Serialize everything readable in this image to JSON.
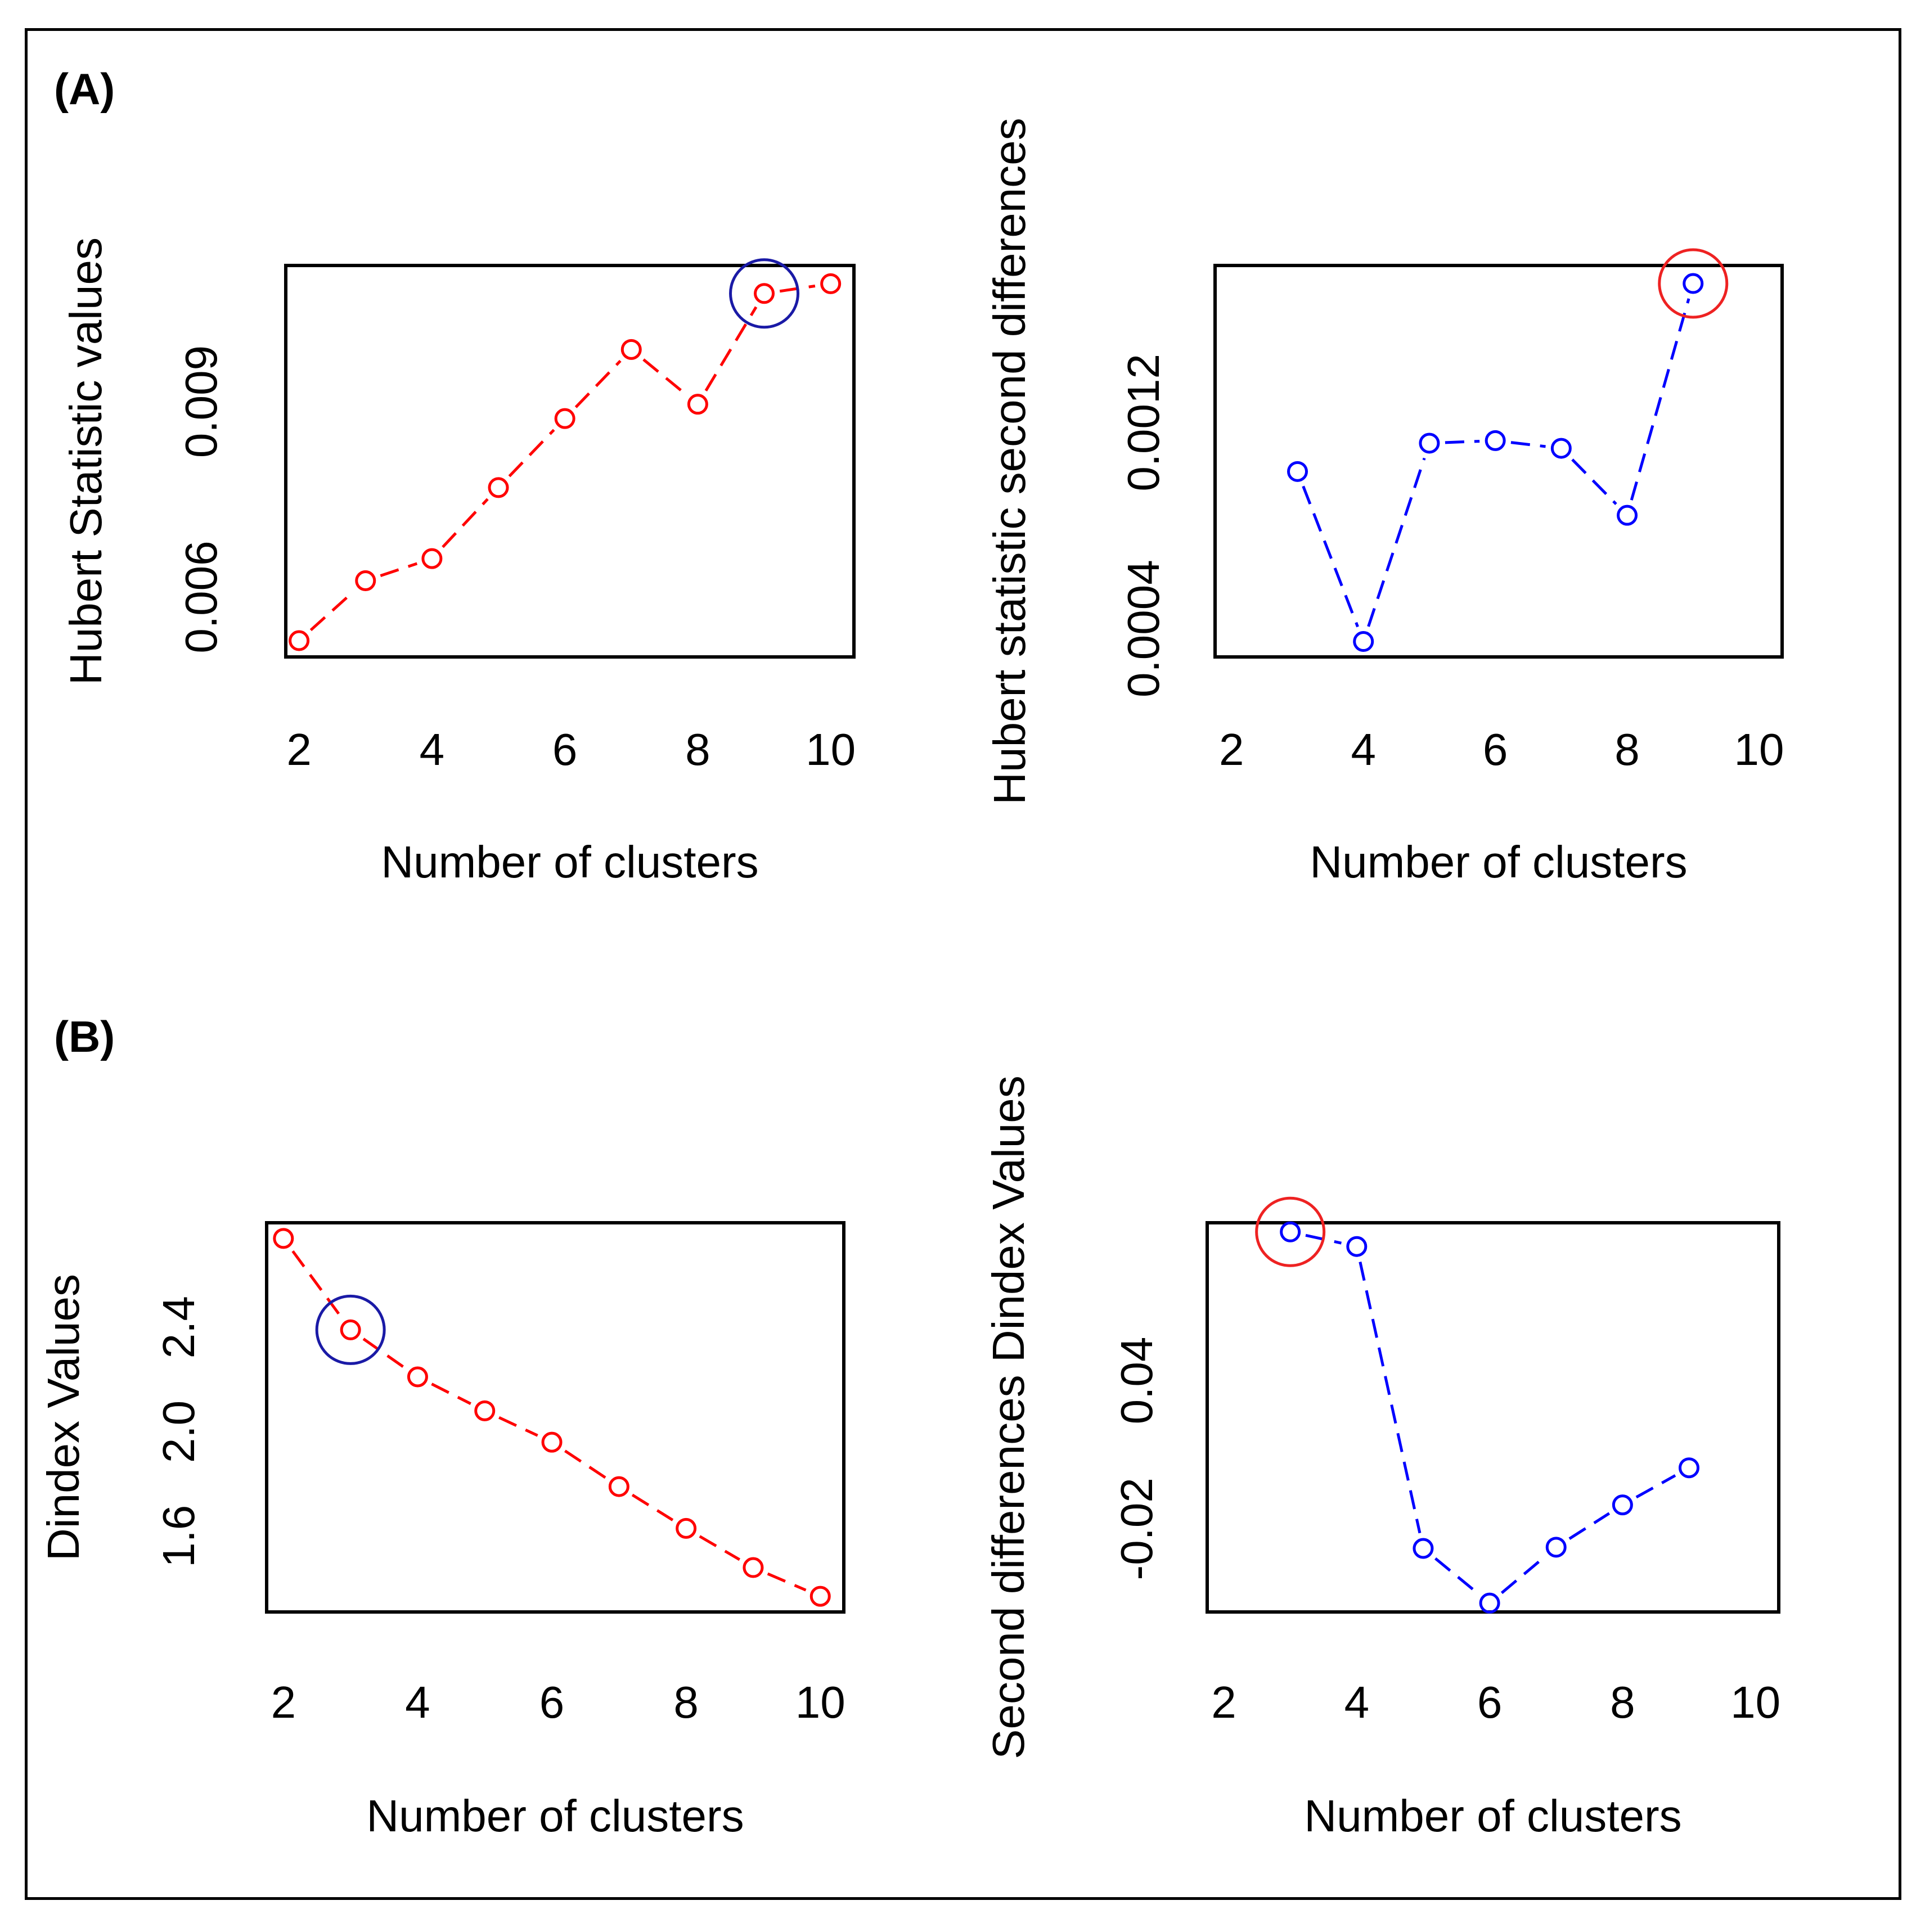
{
  "panel_labels": {
    "a": "(A)",
    "b": "(B)"
  },
  "colors": {
    "red": "#ff0000",
    "blue": "#0000ff",
    "highlight_blue": "#1a1aa6",
    "highlight_red": "#ee2222"
  },
  "chart_data": [
    {
      "id": "a1",
      "type": "line",
      "xlabel": "Number of clusters",
      "ylabel": "Hubert Statistic values",
      "x": [
        2,
        3,
        4,
        5,
        6,
        7,
        8,
        9,
        10
      ],
      "y": [
        0.00533,
        0.00625,
        0.00659,
        0.00768,
        0.00874,
        0.0098,
        0.00896,
        0.01066,
        0.01081
      ],
      "xlim": [
        1.8,
        10.35
      ],
      "ylim": [
        0.00508,
        0.01109
      ],
      "xticks": [
        2,
        4,
        6,
        8,
        10
      ],
      "yticks": [
        0.006,
        0.009
      ],
      "ytick_labels": [
        "0.006",
        "0.009"
      ],
      "color": "red",
      "highlight": {
        "x": 9,
        "y": 0.01066,
        "color": "highlight_blue"
      }
    },
    {
      "id": "a2",
      "type": "line",
      "xlabel": "Number of clusters",
      "ylabel": "Hubert statistic second differences",
      "x": [
        3,
        4,
        5,
        6,
        7,
        8,
        9
      ],
      "y": [
        0.00101,
        0.00035,
        0.00112,
        0.00113,
        0.0011,
        0.00084,
        0.00174
      ],
      "xlim": [
        1.75,
        10.35
      ],
      "ylim": [
        0.00029,
        0.00181
      ],
      "xticks": [
        2,
        4,
        6,
        8,
        10
      ],
      "yticks": [
        0.0004,
        0.0012
      ],
      "ytick_labels": [
        "0.0004",
        "0.0012"
      ],
      "color": "blue",
      "highlight": {
        "x": 9,
        "y": 0.00174,
        "color": "highlight_red"
      }
    },
    {
      "id": "b1",
      "type": "line",
      "xlabel": "Number of clusters",
      "ylabel": "Dindex Values",
      "x": [
        2,
        3,
        4,
        5,
        6,
        7,
        8,
        9,
        10
      ],
      "y": [
        2.74,
        2.39,
        2.21,
        2.08,
        1.96,
        1.79,
        1.63,
        1.48,
        1.37
      ],
      "xlim": [
        1.75,
        10.35
      ],
      "ylim": [
        1.31,
        2.8
      ],
      "xticks": [
        2,
        4,
        6,
        8,
        10
      ],
      "yticks": [
        1.6,
        2.0,
        2.4
      ],
      "ytick_labels": [
        "1.6",
        "2.0",
        "2.4"
      ],
      "color": "red",
      "highlight": {
        "x": 3,
        "y": 2.39,
        "color": "highlight_blue"
      }
    },
    {
      "id": "b2",
      "type": "line",
      "xlabel": "Number of clusters",
      "ylabel": "Second differences Dindex Values",
      "x": [
        3,
        4,
        5,
        6,
        7,
        8,
        9
      ],
      "y": [
        0.1001,
        0.0942,
        -0.0279,
        -0.05,
        -0.0274,
        -0.0103,
        0.0047
      ],
      "xlim": [
        1.75,
        10.35
      ],
      "ylim": [
        -0.0536,
        0.1038
      ],
      "xticks": [
        2,
        4,
        6,
        8,
        10
      ],
      "yticks": [
        -0.02,
        0.04
      ],
      "ytick_labels": [
        "-0.02",
        "0.04"
      ],
      "color": "blue",
      "highlight": {
        "x": 3,
        "y": 0.1001,
        "color": "highlight_red"
      }
    }
  ]
}
